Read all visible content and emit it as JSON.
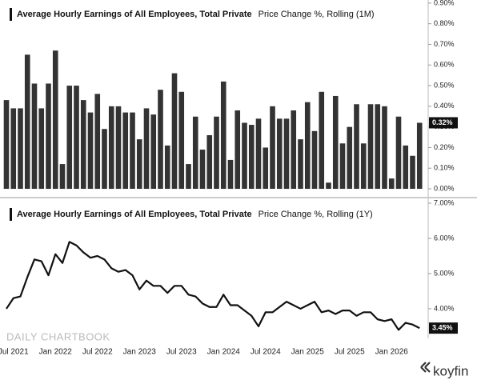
{
  "chart_data": [
    {
      "type": "bar",
      "title": "Average Hourly Earnings of All Employees, Total Private",
      "subtitle": "Price Change %, Rolling (1M)",
      "color": "#333333",
      "grid": false,
      "ylim": [
        -0.027,
        0.915
      ],
      "yticks": [
        {
          "value": 0,
          "label": "0.00%"
        },
        {
          "value": 0.1,
          "label": "0.10%"
        },
        {
          "value": 0.2,
          "label": "0.20%"
        },
        {
          "value": 0.3,
          "label": "0.30%"
        },
        {
          "value": 0.4,
          "label": "0.40%"
        },
        {
          "value": 0.5,
          "label": "0.50%"
        },
        {
          "value": 0.6,
          "label": "0.60%"
        },
        {
          "value": 0.7,
          "label": "0.70%"
        },
        {
          "value": 0.8,
          "label": "0.80%"
        },
        {
          "value": 0.9,
          "label": "0.90%"
        }
      ],
      "values": [
        0.43,
        0.39,
        0.39,
        0.65,
        0.51,
        0.39,
        0.51,
        0.67,
        0.12,
        0.5,
        0.5,
        0.43,
        0.37,
        0.46,
        0.29,
        0.4,
        0.4,
        0.37,
        0.37,
        0.24,
        0.39,
        0.36,
        0.48,
        0.21,
        0.56,
        0.47,
        0.12,
        0.35,
        0.19,
        0.26,
        0.35,
        0.52,
        0.14,
        0.38,
        0.32,
        0.31,
        0.34,
        0.2,
        0.4,
        0.34,
        0.34,
        0.38,
        0.24,
        0.42,
        0.28,
        0.47,
        0.03,
        0.45,
        0.22,
        0.3,
        0.41,
        0.22,
        0.41,
        0.41,
        0.4,
        0.05,
        0.35,
        0.21,
        0.16,
        0.32
      ],
      "value_labels": [
        null,
        null,
        null,
        null,
        null,
        null,
        null,
        null,
        null,
        null,
        null,
        null,
        null,
        null,
        null,
        null,
        null,
        null,
        null,
        null,
        null,
        null,
        null,
        null,
        null,
        null,
        null,
        null,
        null,
        null,
        null,
        null,
        null,
        null,
        null,
        null,
        null,
        null,
        null,
        null,
        null,
        null,
        null,
        null,
        null,
        null,
        null,
        null,
        null,
        null,
        null,
        null,
        null,
        null,
        null,
        null,
        null,
        null,
        null,
        "0.32%"
      ]
    },
    {
      "type": "line",
      "title": "Average Hourly Earnings of All Employees, Total Private",
      "subtitle": "Price Change %, Rolling (1Y)",
      "color": "#111111",
      "grid": false,
      "ylim": [
        3.18,
        7.09
      ],
      "yticks": [
        {
          "value": 4,
          "label": "4.00%"
        },
        {
          "value": 5,
          "label": "5.00%"
        },
        {
          "value": 6,
          "label": "6.00%"
        },
        {
          "value": 7,
          "label": "7.00%"
        }
      ],
      "categories": [
        null,
        "Jul 2021",
        null,
        null,
        null,
        null,
        null,
        "Jan 2022",
        null,
        null,
        null,
        null,
        null,
        "Jul 2022",
        null,
        null,
        null,
        null,
        null,
        "Jan 2023",
        null,
        null,
        null,
        null,
        null,
        "Jul 2023",
        null,
        null,
        null,
        null,
        null,
        "Jan 2024",
        null,
        null,
        null,
        null,
        null,
        "Jul 2024",
        null,
        null,
        null,
        null,
        null,
        "Jan 2025",
        null,
        null,
        null,
        null,
        null,
        "Jul 2025",
        null,
        null,
        null,
        null,
        null,
        "Jan 2026",
        null,
        null,
        null,
        null
      ],
      "values": [
        4.0,
        4.3,
        4.35,
        4.9,
        5.4,
        5.35,
        4.95,
        5.55,
        5.3,
        5.9,
        5.8,
        5.6,
        5.45,
        5.5,
        5.4,
        5.15,
        5.05,
        5.1,
        4.95,
        4.55,
        4.8,
        4.65,
        4.65,
        4.45,
        4.65,
        4.65,
        4.4,
        4.35,
        4.15,
        4.05,
        4.05,
        4.4,
        4.1,
        4.1,
        3.95,
        3.8,
        3.5,
        3.9,
        3.9,
        4.05,
        4.2,
        4.1,
        4.0,
        4.1,
        4.2,
        3.9,
        3.95,
        3.85,
        3.95,
        3.95,
        3.8,
        3.9,
        3.9,
        3.7,
        3.65,
        3.7,
        3.4,
        3.6,
        3.55,
        3.45
      ],
      "value_labels": [
        null,
        null,
        null,
        null,
        null,
        null,
        null,
        null,
        null,
        null,
        null,
        null,
        null,
        null,
        null,
        null,
        null,
        null,
        null,
        null,
        null,
        null,
        null,
        null,
        null,
        null,
        null,
        null,
        null,
        null,
        null,
        null,
        null,
        null,
        null,
        null,
        null,
        null,
        null,
        null,
        null,
        null,
        null,
        null,
        null,
        null,
        null,
        null,
        null,
        null,
        null,
        null,
        null,
        null,
        null,
        null,
        null,
        null,
        null,
        "3.45%"
      ]
    }
  ],
  "watermark": "DAILY CHARTBOOK",
  "brand": "koyfin"
}
